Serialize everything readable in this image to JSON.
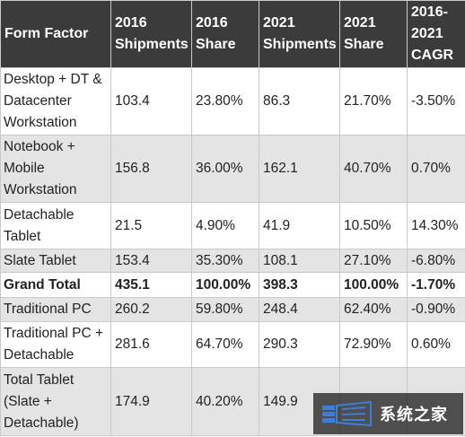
{
  "headers": [
    "Form Factor",
    "2016 Shipments",
    "2016 Share",
    "2021 Shipments",
    "2021 Share",
    "2016-2021 CAGR"
  ],
  "rows": [
    {
      "cells": [
        "Desktop + DT & Datacenter Workstation",
        "103.4",
        "23.80%",
        "86.3",
        "21.70%",
        "-3.50%"
      ]
    },
    {
      "cells": [
        "Notebook + Mobile Workstation",
        "156.8",
        "36.00%",
        "162.1",
        "40.70%",
        "0.70%"
      ]
    },
    {
      "cells": [
        "Detachable Tablet",
        "21.5",
        "4.90%",
        "41.9",
        "10.50%",
        "14.30%"
      ]
    },
    {
      "cells": [
        "Slate Tablet",
        "153.4",
        "35.30%",
        "108.1",
        "27.10%",
        "-6.80%"
      ]
    },
    {
      "cells": [
        "Grand Total",
        "435.1",
        "100.00%",
        "398.3",
        "100.00%",
        "-1.70%"
      ]
    },
    {
      "cells": [
        "Traditional PC",
        "260.2",
        "59.80%",
        "248.4",
        "62.40%",
        "-0.90%"
      ]
    },
    {
      "cells": [
        "Traditional PC + Detachable",
        "281.6",
        "64.70%",
        "290.3",
        "72.90%",
        "0.60%"
      ]
    },
    {
      "cells": [
        "Total Tablet (Slate + Detachable)",
        "174.9",
        "40.20%",
        "149.9",
        "",
        ""
      ]
    }
  ],
  "watermark": {
    "text": "系统之家",
    "icon": "system-home-logo-icon"
  }
}
